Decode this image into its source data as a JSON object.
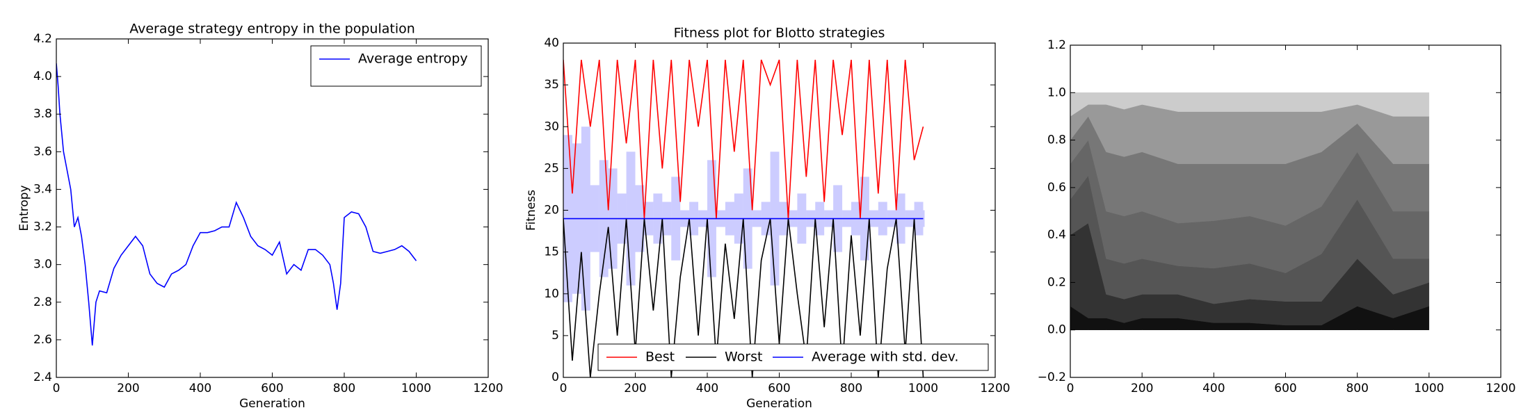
{
  "chart_data": [
    {
      "type": "line",
      "title": "Average strategy entropy in the population",
      "xlabel": "Generation",
      "ylabel": "Entropy",
      "x": [
        0,
        5,
        10,
        20,
        30,
        40,
        50,
        60,
        70,
        80,
        90,
        100,
        110,
        120,
        140,
        160,
        180,
        200,
        220,
        240,
        260,
        280,
        300,
        320,
        340,
        360,
        380,
        400,
        420,
        440,
        460,
        480,
        500,
        520,
        540,
        560,
        580,
        600,
        620,
        640,
        660,
        680,
        700,
        720,
        740,
        760,
        770,
        780,
        790,
        800,
        820,
        840,
        860,
        880,
        900,
        920,
        940,
        960,
        980,
        1000
      ],
      "series": [
        {
          "name": "Average entropy",
          "color": "#0000ff",
          "values": [
            4.07,
            3.95,
            3.8,
            3.6,
            3.5,
            3.4,
            3.2,
            3.25,
            3.15,
            3.0,
            2.8,
            2.57,
            2.8,
            2.86,
            2.85,
            2.98,
            3.05,
            3.1,
            3.15,
            3.1,
            2.95,
            2.9,
            2.88,
            2.95,
            2.97,
            3.0,
            3.1,
            3.17,
            3.17,
            3.18,
            3.2,
            3.2,
            3.33,
            3.25,
            3.15,
            3.1,
            3.08,
            3.05,
            3.12,
            2.95,
            3.0,
            2.97,
            3.08,
            3.08,
            3.05,
            3.0,
            2.9,
            2.76,
            2.9,
            3.25,
            3.28,
            3.27,
            3.2,
            3.07,
            3.06,
            3.07,
            3.08,
            3.1,
            3.07,
            3.02
          ]
        }
      ],
      "xlim": [
        0,
        1200
      ],
      "xticks": [
        0,
        200,
        400,
        600,
        800,
        1000,
        1200
      ],
      "ylim": [
        2.4,
        4.2
      ],
      "yticks": [
        2.4,
        2.6,
        2.8,
        {
          "value": 3,
          "label": "3.0"
        },
        3.2,
        3.4,
        3.6,
        3.8,
        {
          "value": 4,
          "label": "4.0"
        },
        4.2
      ],
      "legend": "upper right"
    },
    {
      "type": "line",
      "title": "Fitness plot for Blotto strategies",
      "xlabel": "Generation",
      "ylabel": "Fitness",
      "x": [
        0,
        25,
        50,
        75,
        100,
        125,
        150,
        175,
        200,
        225,
        250,
        275,
        300,
        325,
        350,
        375,
        400,
        425,
        450,
        475,
        500,
        525,
        550,
        575,
        600,
        625,
        650,
        675,
        700,
        725,
        750,
        775,
        800,
        825,
        850,
        875,
        900,
        925,
        950,
        975,
        1000
      ],
      "series": [
        {
          "name": "Best",
          "color": "#ff0000",
          "values": [
            38,
            22,
            38,
            30,
            38,
            20,
            38,
            28,
            38,
            19,
            38,
            25,
            38,
            21,
            38,
            30,
            38,
            19,
            38,
            27,
            38,
            20,
            38,
            35,
            38,
            19,
            38,
            24,
            38,
            21,
            38,
            29,
            38,
            19,
            38,
            22,
            38,
            20,
            38,
            26,
            30
          ]
        },
        {
          "name": "Worst",
          "color": "#000000",
          "values": [
            19,
            2,
            15,
            0,
            10,
            18,
            5,
            19,
            3,
            19,
            8,
            19,
            0,
            12,
            19,
            5,
            19,
            2,
            16,
            7,
            19,
            0,
            14,
            19,
            4,
            19,
            10,
            2,
            19,
            6,
            19,
            1,
            17,
            5,
            19,
            0,
            13,
            19,
            3,
            19,
            0
          ]
        },
        {
          "name": "Average with std. dev.",
          "color": "#0000ff",
          "values": [
            19,
            19,
            19,
            19,
            19,
            19,
            19,
            19,
            19,
            19,
            19,
            19,
            19,
            19,
            19,
            19,
            19,
            19,
            19,
            19,
            19,
            19,
            19,
            19,
            19,
            19,
            19,
            19,
            19,
            19,
            19,
            19,
            19,
            19,
            19,
            19,
            19,
            19,
            19,
            19,
            19
          ],
          "errors": [
            10,
            9,
            11,
            4,
            7,
            6,
            3,
            8,
            4,
            2,
            3,
            2,
            5,
            1,
            2,
            1,
            7,
            1,
            2,
            3,
            6,
            1,
            2,
            8,
            2,
            1,
            3,
            1,
            2,
            1,
            4,
            1,
            2,
            5,
            1,
            2,
            1,
            3,
            1,
            2,
            1
          ]
        }
      ],
      "xlim": [
        0,
        1200
      ],
      "xticks": [
        0,
        200,
        400,
        600,
        800,
        1000,
        1200
      ],
      "ylim": [
        0,
        40
      ],
      "yticks": [
        0,
        5,
        10,
        15,
        20,
        25,
        30,
        35,
        40
      ],
      "legend": "lower right",
      "legend_layout": "horizontal"
    },
    {
      "type": "stackedarea",
      "x": [
        0,
        50,
        100,
        150,
        200,
        300,
        400,
        500,
        600,
        700,
        800,
        900,
        1000
      ],
      "series": [
        {
          "color": "#111111",
          "values": [
            0.1,
            0.05,
            0.05,
            0.03,
            0.05,
            0.05,
            0.03,
            0.03,
            0.02,
            0.02,
            0.1,
            0.05,
            0.1
          ]
        },
        {
          "color": "#333333",
          "values": [
            0.3,
            0.4,
            0.1,
            0.1,
            0.1,
            0.1,
            0.08,
            0.1,
            0.1,
            0.1,
            0.2,
            0.1,
            0.1
          ]
        },
        {
          "color": "#555555",
          "values": [
            0.15,
            0.2,
            0.15,
            0.15,
            0.15,
            0.12,
            0.15,
            0.15,
            0.12,
            0.2,
            0.25,
            0.15,
            0.1
          ]
        },
        {
          "color": "#666666",
          "values": [
            0.15,
            0.15,
            0.2,
            0.2,
            0.2,
            0.18,
            0.2,
            0.2,
            0.2,
            0.2,
            0.2,
            0.2,
            0.2
          ]
        },
        {
          "color": "#777777",
          "values": [
            0.1,
            0.1,
            0.25,
            0.25,
            0.25,
            0.25,
            0.24,
            0.22,
            0.26,
            0.23,
            0.12,
            0.2,
            0.2
          ]
        },
        {
          "color": "#999999",
          "values": [
            0.1,
            0.05,
            0.2,
            0.2,
            0.2,
            0.22,
            0.22,
            0.22,
            0.22,
            0.17,
            0.08,
            0.2,
            0.2
          ]
        },
        {
          "color": "#cccccc",
          "values": [
            0.1,
            0.05,
            0.05,
            0.07,
            0.05,
            0.08,
            0.08,
            0.08,
            0.08,
            0.08,
            0.05,
            0.1,
            0.1
          ]
        }
      ],
      "xlim": [
        0,
        1200
      ],
      "xticks": [
        0,
        200,
        400,
        600,
        800,
        1000,
        1200
      ],
      "ylim": [
        -0.2,
        1.2
      ],
      "yticks": [
        {
          "value": -0.2,
          "label": "−0.2"
        },
        {
          "value": 0,
          "label": "0.0"
        },
        0.2,
        0.4,
        0.6,
        0.8,
        {
          "value": 1,
          "label": "1.0"
        },
        1.2
      ]
    }
  ]
}
